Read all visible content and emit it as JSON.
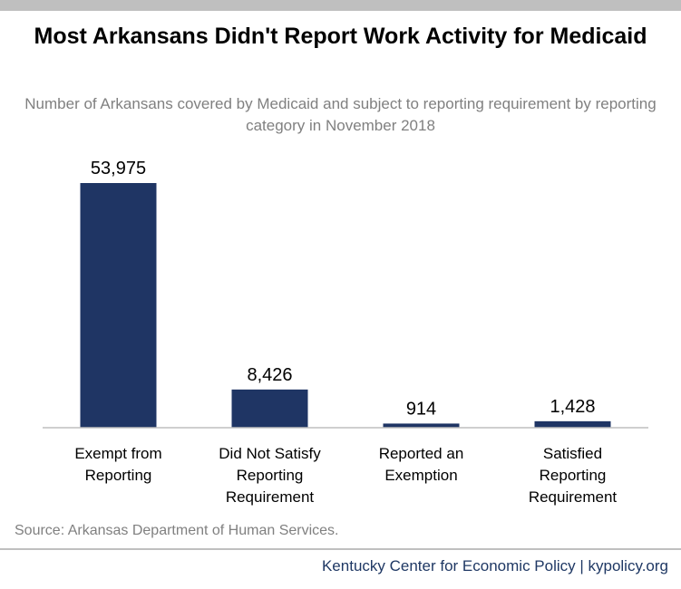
{
  "chart_data": {
    "type": "bar",
    "title": "Most Arkansans Didn't Report Work Activity for Medicaid",
    "subtitle": "Number of Arkansans covered by Medicaid and subject to reporting requirement by reporting category in November 2018",
    "categories": [
      [
        "Exempt from",
        "Reporting"
      ],
      [
        "Did Not Satisfy",
        "Reporting",
        "Requirement"
      ],
      [
        "Reported an",
        "Exemption"
      ],
      [
        "Satisfied",
        "Reporting",
        "Requirement"
      ]
    ],
    "values": [
      53975,
      8426,
      914,
      1428
    ],
    "value_labels": [
      "53,975",
      "8,426",
      "914",
      "1,428"
    ],
    "color": "#1f3564",
    "source": "Source: Arkansas Department of Human Services.",
    "credit": "Kentucky Center for Economic Policy | kypolicy.org"
  }
}
